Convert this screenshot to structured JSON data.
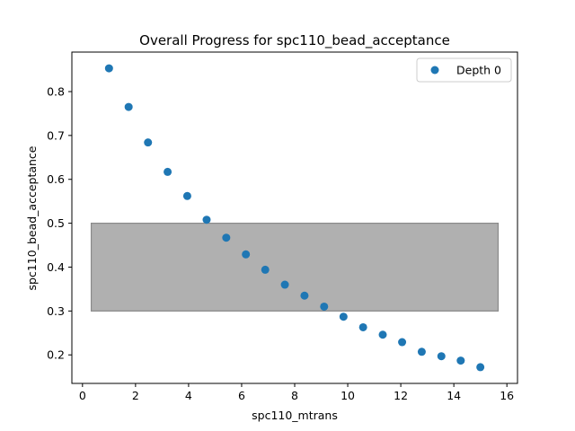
{
  "chart_data": {
    "type": "scatter",
    "title": "Overall Progress for spc110_bead_acceptance",
    "xlabel": "spc110_mtrans",
    "ylabel": "spc110_bead_acceptance",
    "xlim": [
      -0.4,
      16.4
    ],
    "ylim": [
      0.135,
      0.89
    ],
    "xticks": [
      0,
      2,
      4,
      6,
      8,
      10,
      12,
      14,
      16
    ],
    "yticks": [
      0.2,
      0.3,
      0.4,
      0.5,
      0.6,
      0.7,
      0.8
    ],
    "grid": false,
    "legend_position": "top-right",
    "series": [
      {
        "name": "Depth 0",
        "color": "#1f77b4",
        "x": [
          1.0,
          1.74,
          2.47,
          3.21,
          3.95,
          4.68,
          5.42,
          6.16,
          6.89,
          7.63,
          8.37,
          9.11,
          9.84,
          10.58,
          11.32,
          12.05,
          12.79,
          13.53,
          14.26,
          15.0
        ],
        "y": [
          0.853,
          0.765,
          0.684,
          0.617,
          0.562,
          0.508,
          0.467,
          0.429,
          0.394,
          0.36,
          0.335,
          0.31,
          0.287,
          0.263,
          0.246,
          0.229,
          0.207,
          0.197,
          0.187,
          0.172
        ]
      }
    ],
    "region": {
      "x_range": [
        0.33,
        15.67
      ],
      "y_range": [
        0.3,
        0.5
      ],
      "fill": "#b0b0b0",
      "stroke": "#8a8a8a"
    }
  }
}
